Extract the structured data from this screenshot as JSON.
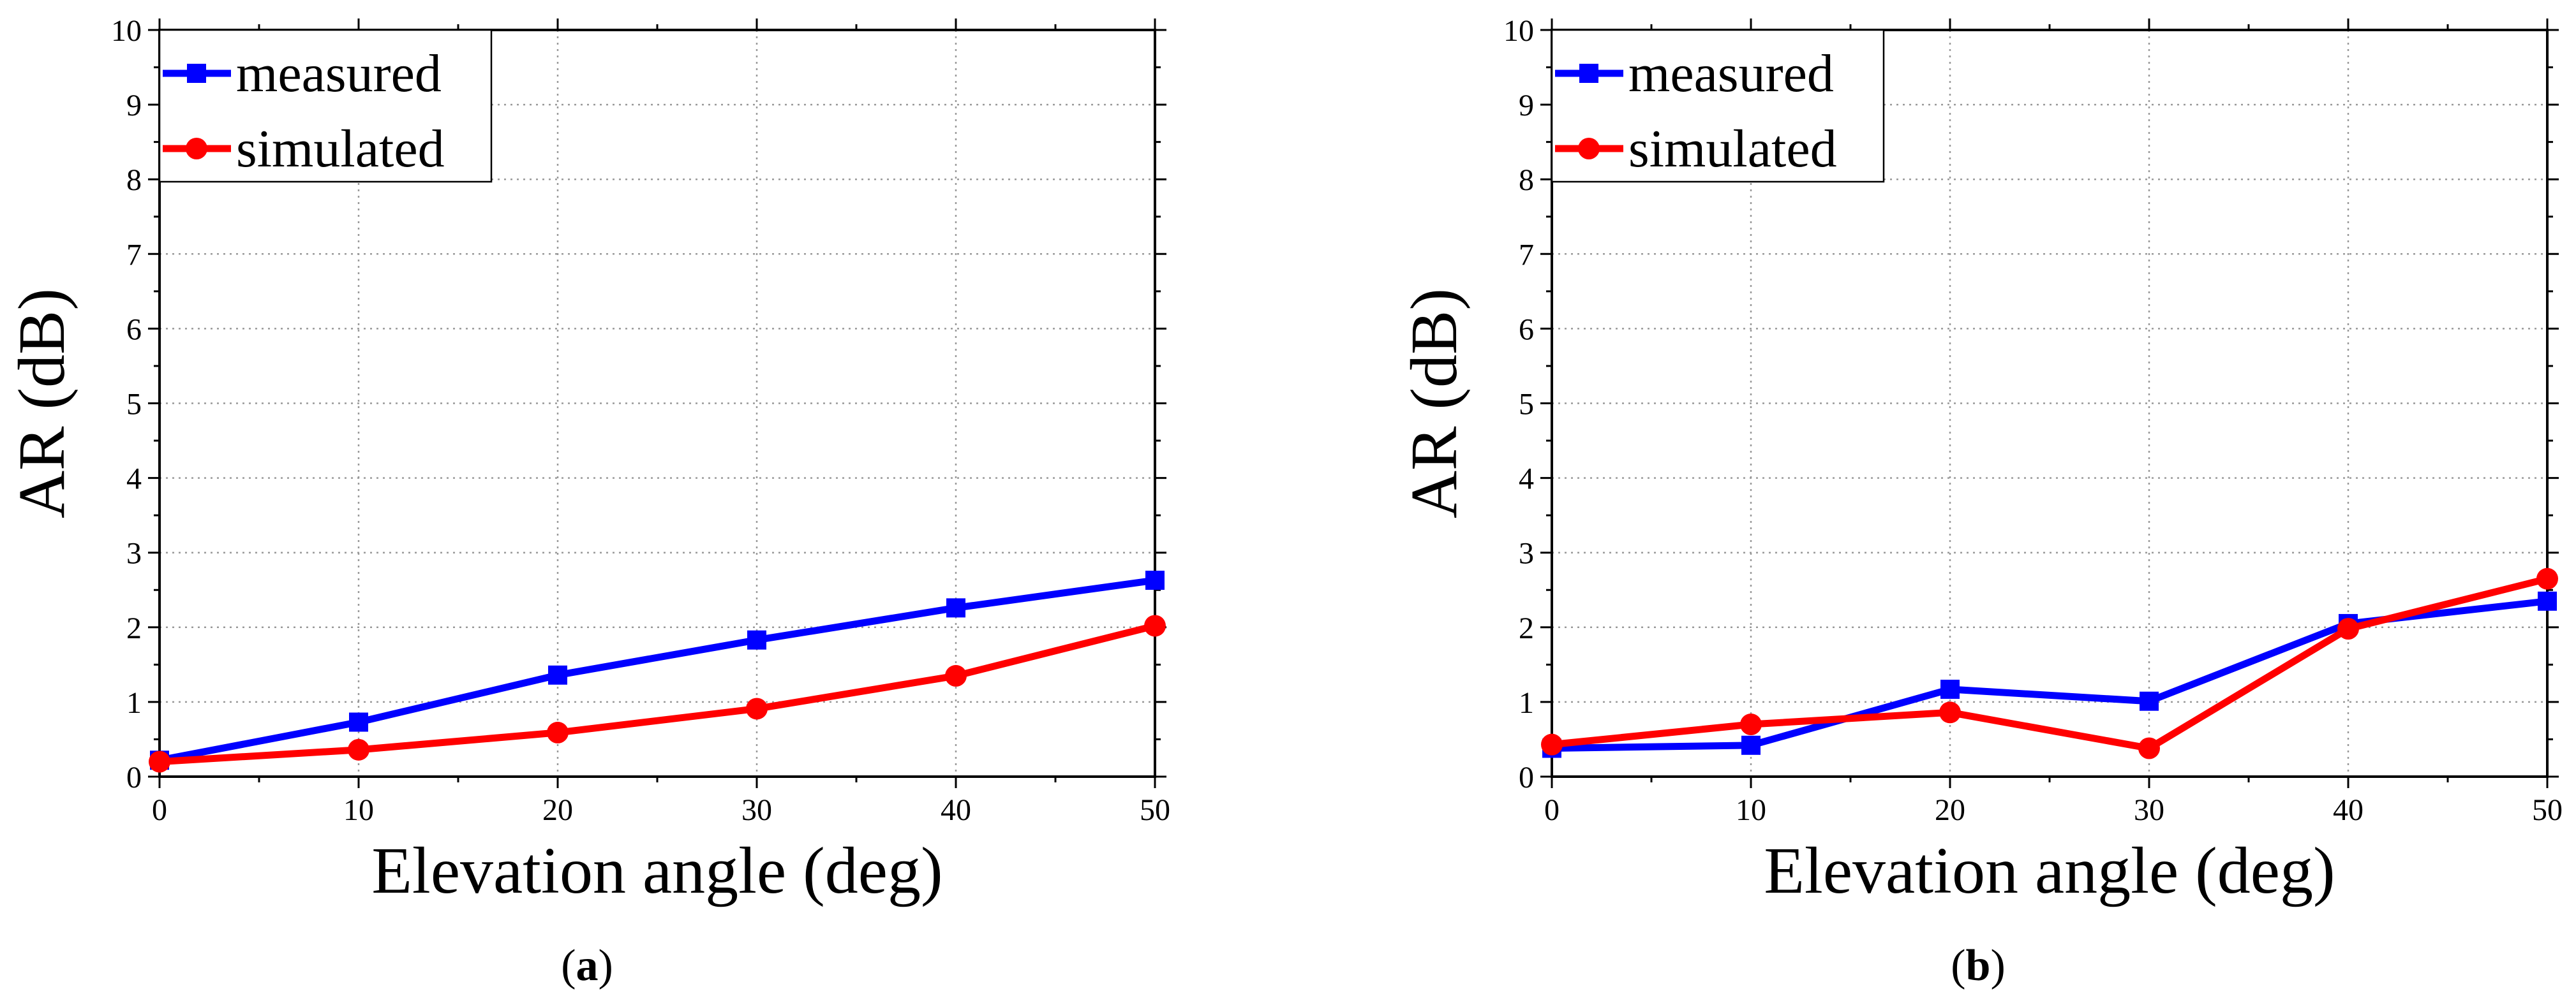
{
  "chart_data": [
    {
      "type": "line",
      "panel_label_parts": [
        "(",
        "a",
        ")"
      ],
      "xlabel": "Elevation angle (deg)",
      "ylabel": "AR  (dB)",
      "xlim": [
        0,
        50
      ],
      "ylim": [
        0,
        10
      ],
      "x_ticks": [
        0,
        10,
        20,
        30,
        40,
        50
      ],
      "y_ticks": [
        0,
        1,
        2,
        3,
        4,
        5,
        6,
        7,
        8,
        9,
        10
      ],
      "grid": true,
      "legend_position": "top-left",
      "x": [
        0,
        10,
        20,
        30,
        40,
        50
      ],
      "series": [
        {
          "name": "measured",
          "color": "#0000ff",
          "marker": "square",
          "values": [
            0.22,
            0.73,
            1.36,
            1.83,
            2.26,
            2.63
          ]
        },
        {
          "name": "simulated",
          "color": "#ff0000",
          "marker": "circle",
          "values": [
            0.2,
            0.36,
            0.59,
            0.91,
            1.35,
            2.02
          ]
        }
      ]
    },
    {
      "type": "line",
      "panel_label_parts": [
        "(",
        "b",
        ")"
      ],
      "xlabel": "Elevation angle (deg)",
      "ylabel": "AR  (dB)",
      "xlim": [
        0,
        50
      ],
      "ylim": [
        0,
        10
      ],
      "x_ticks": [
        0,
        10,
        20,
        30,
        40,
        50
      ],
      "y_ticks": [
        0,
        1,
        2,
        3,
        4,
        5,
        6,
        7,
        8,
        9,
        10
      ],
      "grid": true,
      "legend_position": "top-left",
      "x": [
        0,
        10,
        20,
        30,
        40,
        50
      ],
      "series": [
        {
          "name": "measured",
          "color": "#0000ff",
          "marker": "square",
          "values": [
            0.38,
            0.42,
            1.17,
            1.01,
            2.05,
            2.35
          ]
        },
        {
          "name": "simulated",
          "color": "#ff0000",
          "marker": "circle",
          "values": [
            0.43,
            0.7,
            0.86,
            0.38,
            1.98,
            2.65
          ]
        }
      ]
    }
  ]
}
